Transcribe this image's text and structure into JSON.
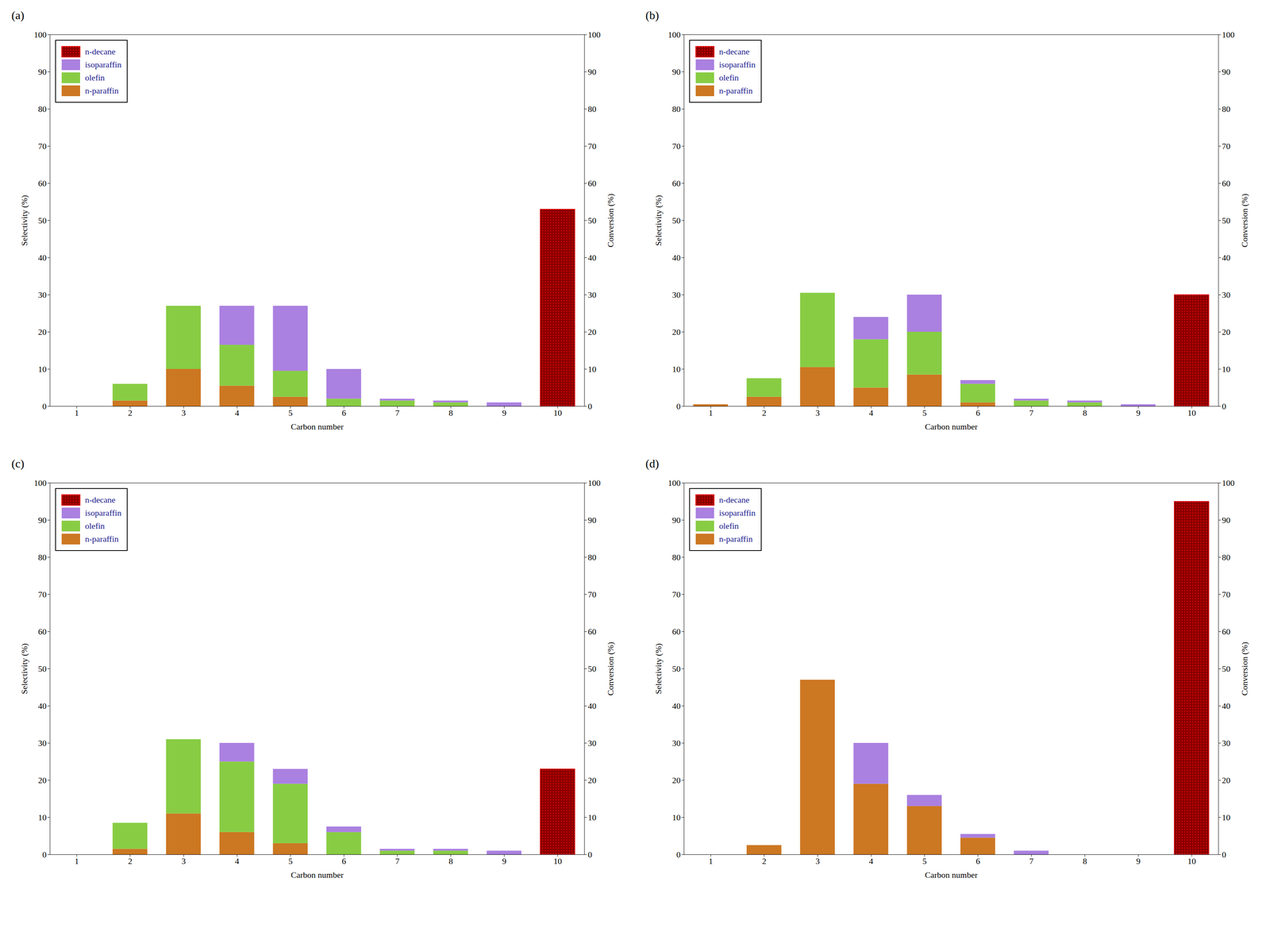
{
  "chart_data": [
    {
      "type": "bar",
      "title": "(a)",
      "stacked": true,
      "grid": false,
      "legend": "upper left",
      "x": [
        1,
        2,
        3,
        4,
        5,
        6,
        7,
        8,
        9,
        10
      ],
      "xlim": [
        0.5,
        10.5
      ],
      "xticks": [
        1,
        2,
        3,
        4,
        5,
        6,
        7,
        8,
        9,
        10
      ],
      "ylim": [
        0,
        100
      ],
      "yticks": [
        0,
        10,
        20,
        30,
        40,
        50,
        60,
        70,
        80,
        90,
        100
      ],
      "y2lim": [
        0,
        100
      ],
      "y2ticks": [
        0,
        10,
        20,
        30,
        40,
        50,
        60,
        70,
        80,
        90,
        100
      ],
      "xlabel": "Carbon number",
      "ylabel": "Selectivity (%)",
      "y2label": "Conversion (%)",
      "series": [
        {
          "name": "n-paraffin",
          "color": "#CC7722",
          "values": [
            0,
            1.5,
            10,
            5.5,
            2.5,
            0,
            0,
            0,
            0,
            0
          ]
        },
        {
          "name": "olefin",
          "color": "#88CC44",
          "values": [
            0,
            4.5,
            17,
            11,
            7,
            2,
            1.5,
            1,
            0,
            0
          ]
        },
        {
          "name": "isoparaffin",
          "color": "#AA80E0",
          "values": [
            0,
            0,
            0,
            10.5,
            17.5,
            8,
            0.5,
            0.5,
            1,
            0
          ]
        },
        {
          "name": "n-decane",
          "color": "#8B0000",
          "axis": "y2",
          "values": [
            null,
            null,
            null,
            null,
            null,
            null,
            null,
            null,
            null,
            53
          ]
        }
      ]
    },
    {
      "type": "bar",
      "title": "(b)",
      "stacked": true,
      "grid": false,
      "legend": "upper left",
      "x": [
        1,
        2,
        3,
        4,
        5,
        6,
        7,
        8,
        9,
        10
      ],
      "xlim": [
        0.5,
        10.5
      ],
      "xticks": [
        1,
        2,
        3,
        4,
        5,
        6,
        7,
        8,
        9,
        10
      ],
      "ylim": [
        0,
        100
      ],
      "yticks": [
        0,
        10,
        20,
        30,
        40,
        50,
        60,
        70,
        80,
        90,
        100
      ],
      "y2lim": [
        0,
        100
      ],
      "y2ticks": [
        0,
        10,
        20,
        30,
        40,
        50,
        60,
        70,
        80,
        90,
        100
      ],
      "xlabel": "Carbon number",
      "ylabel": "Selectivity (%)",
      "y2label": "Conversion (%)",
      "series": [
        {
          "name": "n-paraffin",
          "color": "#CC7722",
          "values": [
            0.5,
            2.5,
            10.5,
            5,
            8.5,
            1,
            0,
            0,
            0,
            0
          ]
        },
        {
          "name": "olefin",
          "color": "#88CC44",
          "values": [
            0,
            5,
            20,
            13,
            11.5,
            5,
            1.5,
            1,
            0,
            0
          ]
        },
        {
          "name": "isoparaffin",
          "color": "#AA80E0",
          "values": [
            0,
            0,
            0,
            6,
            10,
            1,
            0.5,
            0.5,
            0.5,
            0
          ]
        },
        {
          "name": "n-decane",
          "color": "#8B0000",
          "axis": "y2",
          "values": [
            null,
            null,
            null,
            null,
            null,
            null,
            null,
            null,
            null,
            30
          ]
        }
      ]
    },
    {
      "type": "bar",
      "title": "(c)",
      "stacked": true,
      "grid": false,
      "legend": "upper left",
      "x": [
        1,
        2,
        3,
        4,
        5,
        6,
        7,
        8,
        9,
        10
      ],
      "xlim": [
        0.5,
        10.5
      ],
      "xticks": [
        1,
        2,
        3,
        4,
        5,
        6,
        7,
        8,
        9,
        10
      ],
      "ylim": [
        0,
        100
      ],
      "yticks": [
        0,
        10,
        20,
        30,
        40,
        50,
        60,
        70,
        80,
        90,
        100
      ],
      "y2lim": [
        0,
        100
      ],
      "y2ticks": [
        0,
        10,
        20,
        30,
        40,
        50,
        60,
        70,
        80,
        90,
        100
      ],
      "xlabel": "Carbon number",
      "ylabel": "Selectivity (%)",
      "y2label": "Conversion (%)",
      "series": [
        {
          "name": "n-paraffin",
          "color": "#CC7722",
          "values": [
            0,
            1.5,
            11,
            6,
            3,
            0,
            0,
            0,
            0,
            0
          ]
        },
        {
          "name": "olefin",
          "color": "#88CC44",
          "values": [
            0,
            7,
            20,
            19,
            16,
            6,
            1,
            1,
            0,
            0
          ]
        },
        {
          "name": "isoparaffin",
          "color": "#AA80E0",
          "values": [
            0,
            0,
            0,
            5,
            4,
            1.5,
            0.5,
            0.5,
            1,
            0
          ]
        },
        {
          "name": "n-decane",
          "color": "#8B0000",
          "axis": "y2",
          "values": [
            null,
            null,
            null,
            null,
            null,
            null,
            null,
            null,
            null,
            23
          ]
        }
      ]
    },
    {
      "type": "bar",
      "title": "(d)",
      "stacked": true,
      "grid": false,
      "legend": "upper left",
      "x": [
        1,
        2,
        3,
        4,
        5,
        6,
        7,
        8,
        9,
        10
      ],
      "xlim": [
        0.5,
        10.5
      ],
      "xticks": [
        1,
        2,
        3,
        4,
        5,
        6,
        7,
        8,
        9,
        10
      ],
      "ylim": [
        0,
        100
      ],
      "yticks": [
        0,
        10,
        20,
        30,
        40,
        50,
        60,
        70,
        80,
        90,
        100
      ],
      "y2lim": [
        0,
        100
      ],
      "y2ticks": [
        0,
        10,
        20,
        30,
        40,
        50,
        60,
        70,
        80,
        90,
        100
      ],
      "xlabel": "Carbon number",
      "ylabel": "Selectivity (%)",
      "y2label": "Conversion (%)",
      "series": [
        {
          "name": "n-paraffin",
          "color": "#CC7722",
          "values": [
            0,
            2.5,
            47,
            19,
            13,
            4.5,
            0,
            0,
            0,
            0
          ]
        },
        {
          "name": "olefin",
          "color": "#88CC44",
          "values": [
            0,
            0,
            0,
            0,
            0,
            0,
            0,
            0,
            0,
            0
          ]
        },
        {
          "name": "isoparaffin",
          "color": "#AA80E0",
          "values": [
            0,
            0,
            0,
            11,
            3,
            1,
            1,
            0,
            0,
            0
          ]
        },
        {
          "name": "n-decane",
          "color": "#8B0000",
          "axis": "y2",
          "values": [
            null,
            null,
            null,
            null,
            null,
            null,
            null,
            null,
            null,
            95
          ]
        }
      ]
    }
  ]
}
